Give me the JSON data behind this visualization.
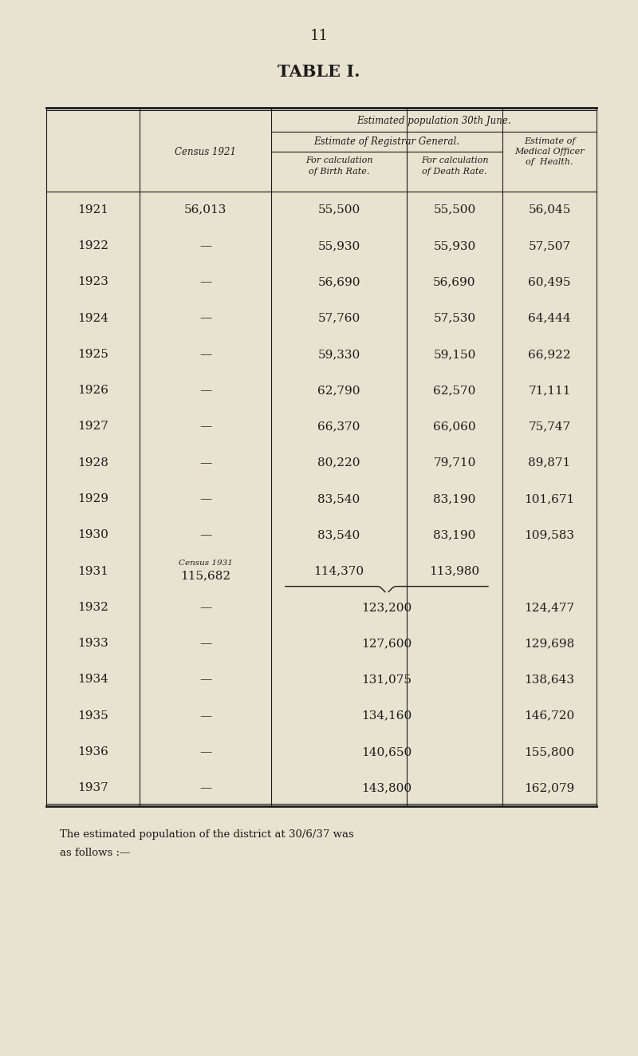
{
  "page_number": "11",
  "title": "TABLE I.",
  "bg_color": "#e8e3d0",
  "text_color": "#1c1c1c",
  "header_top": "Estimated population 30th June.",
  "subheader_group": "Estimate of Registrar General.",
  "rows": [
    {
      "year": "1921",
      "census": "56,013",
      "birth": "55,500",
      "death": "55,500",
      "moh": "56,045",
      "merged": false
    },
    {
      "year": "1922",
      "census": "—",
      "birth": "55,930",
      "death": "55,930",
      "moh": "57,507",
      "merged": false
    },
    {
      "year": "1923",
      "census": "—",
      "birth": "56,690",
      "death": "56,690",
      "moh": "60,495",
      "merged": false
    },
    {
      "year": "1924",
      "census": "—",
      "birth": "57,760",
      "death": "57,530",
      "moh": "64,444",
      "merged": false
    },
    {
      "year": "1925",
      "census": "—",
      "birth": "59,330",
      "death": "59,150",
      "moh": "66,922",
      "merged": false
    },
    {
      "year": "1926",
      "census": "—",
      "birth": "62,790",
      "death": "62,570",
      "moh": "71,111",
      "merged": false
    },
    {
      "year": "1927",
      "census": "—",
      "birth": "66,370",
      "death": "66,060",
      "moh": "75,747",
      "merged": false
    },
    {
      "year": "1928",
      "census": "—",
      "birth": "80,220",
      "death": "79,710",
      "moh": "89,871",
      "merged": false
    },
    {
      "year": "1929",
      "census": "—",
      "birth": "83,540",
      "death": "83,190",
      "moh": "101,671",
      "merged": false
    },
    {
      "year": "1930",
      "census": "—",
      "birth": "83,540",
      "death": "83,190",
      "moh": "109,583",
      "merged": false
    },
    {
      "year": "1931",
      "census": "115,682",
      "census_label": "Census 1931",
      "birth": "114,370",
      "death": "113,980",
      "moh": "",
      "merged": false
    },
    {
      "year": "1932",
      "census": "—",
      "birth": "123,200",
      "death": "",
      "moh": "124,477",
      "merged": true
    },
    {
      "year": "1933",
      "census": "—",
      "birth": "127,600",
      "death": "",
      "moh": "129,698",
      "merged": true
    },
    {
      "year": "1934",
      "census": "—",
      "birth": "131,075",
      "death": "",
      "moh": "138,643",
      "merged": true
    },
    {
      "year": "1935",
      "census": "—",
      "birth": "134,160",
      "death": "",
      "moh": "146,720",
      "merged": true
    },
    {
      "year": "1936",
      "census": "—",
      "birth": "140,650",
      "death": "",
      "moh": "155,800",
      "merged": true
    },
    {
      "year": "1937",
      "census": "—",
      "birth": "143,800",
      "death": "",
      "moh": "162,079",
      "merged": true
    }
  ],
  "footer_text1": "The estimated population of the district at 30/6/37 was",
  "footer_text2": "as follows :—"
}
